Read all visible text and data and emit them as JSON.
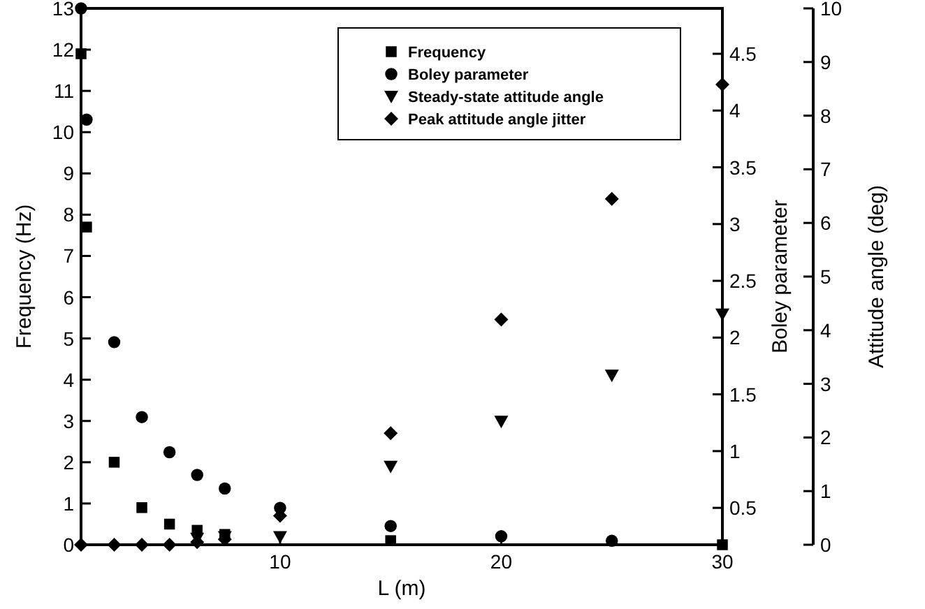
{
  "chart_data": {
    "type": "scatter",
    "xlabel": "L (m)",
    "ylabel": "Frequency (Hz)",
    "y2label": "Boley parameter",
    "y3label": "Attitude angle (deg)",
    "xlim": [
      1,
      30
    ],
    "xticks": [
      10,
      20,
      30
    ],
    "ylim": [
      0,
      13
    ],
    "yticks": [
      0,
      1,
      2,
      3,
      4,
      5,
      6,
      7,
      8,
      9,
      10,
      11,
      12,
      13
    ],
    "y2lim": [
      0.175,
      4.9
    ],
    "y2ticks": [
      0.5,
      1,
      1.5,
      2,
      2.5,
      3,
      3.5,
      4,
      4.5
    ],
    "y3lim": [
      0,
      10
    ],
    "y3ticks": [
      0,
      1,
      2,
      3,
      4,
      5,
      6,
      7,
      8,
      9,
      10
    ],
    "legend": "top right",
    "grid": false,
    "series": [
      {
        "name": "Frequency",
        "color": "#000000",
        "marker": "square",
        "x": [
          1,
          1.25,
          2.5,
          3.75,
          5,
          6.25,
          7.5,
          15,
          30
        ],
        "values": [
          11.9,
          7.7,
          2.0,
          0.9,
          0.5,
          0.35,
          0.25,
          0.1,
          0
        ]
      },
      {
        "name": "Boley parameter",
        "color": "#000000",
        "marker": "circle",
        "axis": "y2",
        "x": [
          1,
          1.25,
          2.5,
          3.75,
          5,
          6.25,
          7.5,
          10,
          15,
          20,
          25
        ],
        "values": [
          4.9,
          3.92,
          1.96,
          1.3,
          0.99,
          0.79,
          0.67,
          0.5,
          0.34,
          0.25,
          0.21
        ]
      },
      {
        "name": "Steady-state attitude angle",
        "color": "#000000",
        "marker": "triangle",
        "axis": "y3",
        "x": [
          6.25,
          7.5,
          10,
          15,
          20,
          25,
          30
        ],
        "values": [
          0.12,
          0.15,
          0.15,
          1.46,
          2.3,
          3.16,
          4.3
        ]
      },
      {
        "name": "Peak attitude angle jitter",
        "color": "#000000",
        "marker": "diamond",
        "axis": "y3",
        "x": [
          1,
          2.5,
          3.75,
          5,
          6.25,
          7.5,
          10,
          15,
          20,
          25,
          30
        ],
        "values": [
          0,
          0,
          0,
          0,
          0.05,
          0.1,
          0.54,
          2.08,
          4.2,
          6.45,
          8.58
        ]
      }
    ]
  }
}
